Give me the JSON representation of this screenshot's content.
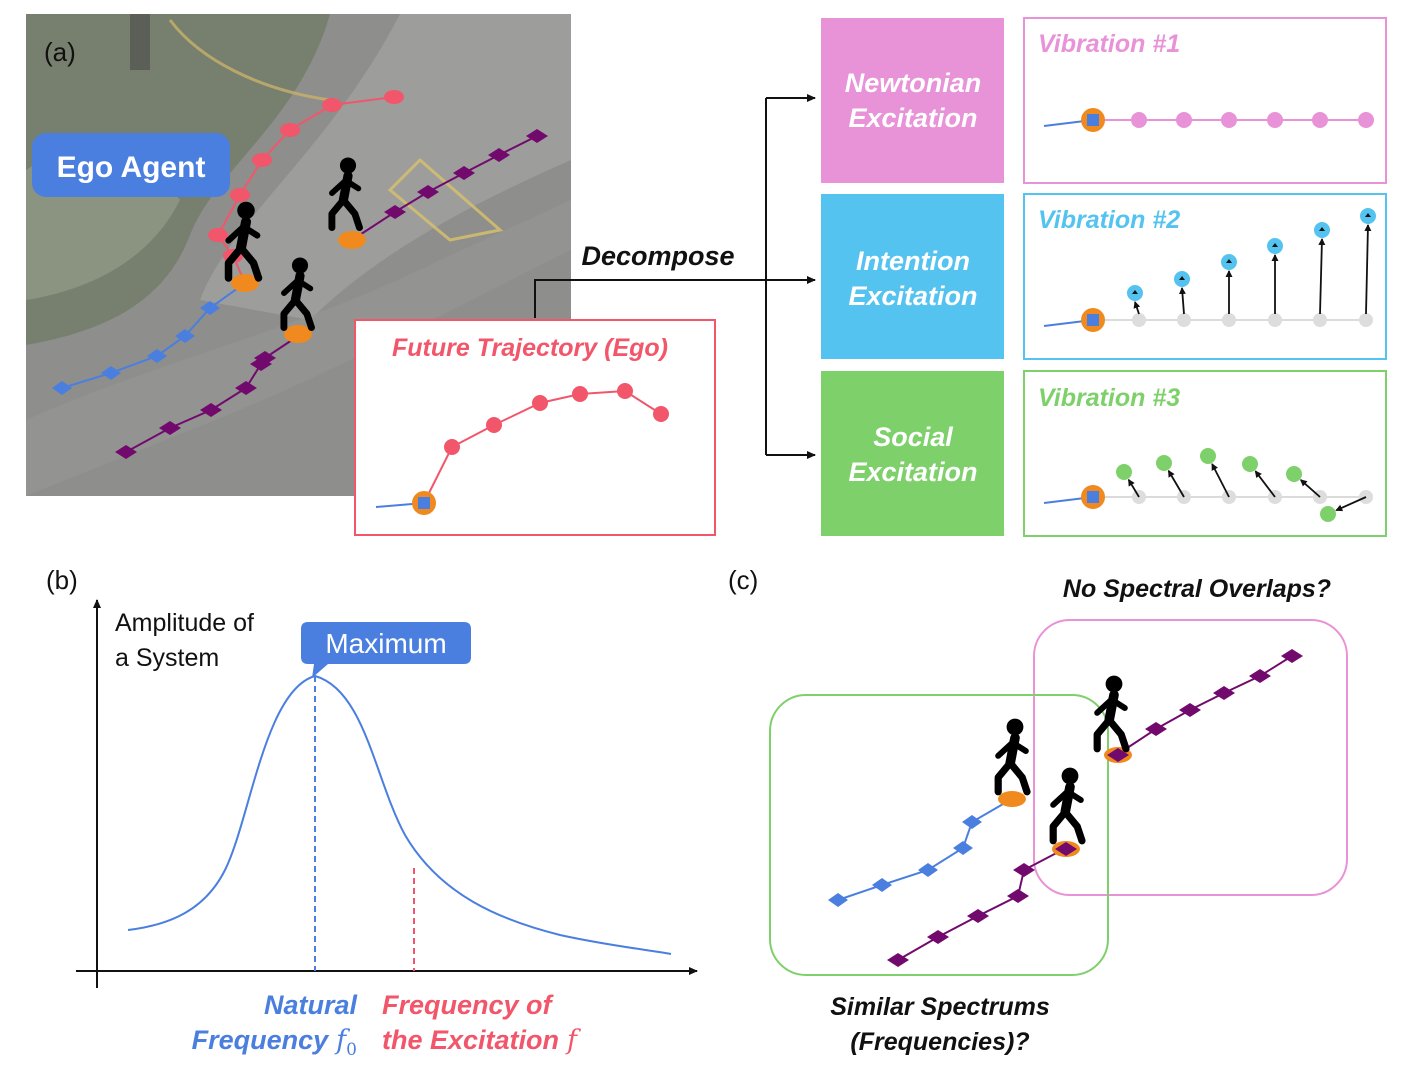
{
  "panel_a": {
    "label": "(a)",
    "ego_agent_label": "Ego Agent",
    "decompose_label": "Decompose",
    "future_trajectory_title": "Future Trajectory (Ego)",
    "excitations": [
      {
        "line1": "Newtonian",
        "line2": "Excitation",
        "color": "#e892d8"
      },
      {
        "line1": "Intention",
        "line2": "Excitation",
        "color": "#55c3f0"
      },
      {
        "line1": "Social",
        "line2": "Excitation",
        "color": "#7ed06a"
      }
    ],
    "vibrations": [
      {
        "title": "Vibration #1",
        "color": "#e892d8"
      },
      {
        "title": "Vibration #2",
        "color": "#55c3f0"
      },
      {
        "title": "Vibration #3",
        "color": "#7ed06a"
      }
    ]
  },
  "panel_b": {
    "label": "(b)",
    "ylabel_line1": "Amplitude of",
    "ylabel_line2": "a System",
    "callout": "Maximum",
    "natural_line1": "Natural",
    "natural_line2": "Frequency",
    "natural_symbol": "f",
    "natural_subscript": "0",
    "excitation_line1": "Frequency of",
    "excitation_line2": "the Excitation",
    "excitation_symbol": "f"
  },
  "panel_c": {
    "label": "(c)",
    "top_question": "No Spectral Overlaps?",
    "bottom_line1": "Similar Spectrums",
    "bottom_line2": "(Frequencies)?"
  },
  "colors": {
    "ego_blue": "#4a7fe0",
    "trajectory_red": "#f2566a",
    "neighbor_purple": "#720a6e",
    "orange": "#f08a1e",
    "newtonian_pink": "#e892d8",
    "intention_blue": "#55c3f0",
    "social_green": "#7ed06a"
  }
}
